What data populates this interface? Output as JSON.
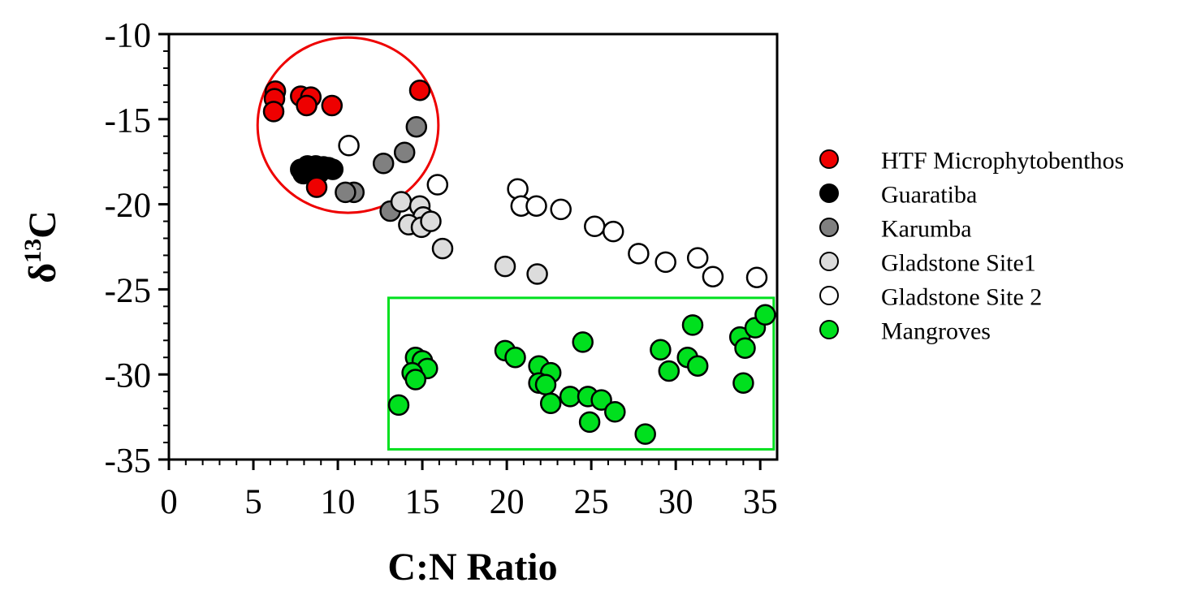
{
  "figure": {
    "background": "#ffffff",
    "frame_color": "#000000"
  },
  "chart_data": {
    "type": "scatter",
    "title": "",
    "xlabel": "C:N Ratio",
    "ylabel": {
      "symbol": "δ",
      "superscript": "13",
      "element": "C"
    },
    "xlim": [
      0,
      36
    ],
    "ylim": [
      -35,
      -10
    ],
    "grid": false,
    "x_ticks": [
      0,
      5,
      10,
      15,
      20,
      25,
      30,
      35
    ],
    "y_ticks": [
      -10,
      -15,
      -20,
      -25,
      -30,
      -35
    ],
    "minor_tick_step": 1,
    "legend_position": "right",
    "series": [
      {
        "name": "HTF Microphytobenthos",
        "color": "#ee0000",
        "z": 1,
        "points": [
          [
            6.3,
            -13.35
          ],
          [
            6.25,
            -13.8
          ],
          [
            6.2,
            -14.55
          ],
          [
            7.8,
            -13.65
          ],
          [
            8.4,
            -13.7
          ],
          [
            8.15,
            -14.2
          ],
          [
            9.65,
            -14.2
          ],
          [
            14.85,
            -13.3
          ],
          [
            8.75,
            -19.0
          ]
        ]
      },
      {
        "name": "Guaratiba",
        "color": "#000000",
        "z": 0,
        "points": [
          [
            7.8,
            -17.95
          ],
          [
            7.95,
            -18.2
          ],
          [
            8.2,
            -17.75
          ],
          [
            8.45,
            -18.05
          ],
          [
            8.7,
            -17.75
          ],
          [
            8.9,
            -18.15
          ],
          [
            9.15,
            -17.8
          ],
          [
            9.45,
            -17.85
          ],
          [
            9.7,
            -17.95
          ]
        ]
      },
      {
        "name": "Karumba",
        "color": "#808080",
        "z": 2,
        "points": [
          [
            14.65,
            -15.45
          ],
          [
            13.95,
            -16.95
          ],
          [
            12.7,
            -17.6
          ],
          [
            10.95,
            -19.3
          ],
          [
            10.45,
            -19.3
          ],
          [
            13.1,
            -20.4
          ]
        ]
      },
      {
        "name": "Gladstone Site1",
        "color": "#dcdcdc",
        "z": 3,
        "points": [
          [
            13.75,
            -19.85
          ],
          [
            14.85,
            -20.1
          ],
          [
            15.05,
            -20.75
          ],
          [
            14.2,
            -21.2
          ],
          [
            14.95,
            -21.35
          ],
          [
            15.5,
            -21.0
          ],
          [
            16.2,
            -22.6
          ],
          [
            19.9,
            -23.65
          ],
          [
            21.8,
            -24.1
          ]
        ]
      },
      {
        "name": "Gladstone Site 2",
        "color": "#ffffff",
        "z": 4,
        "points": [
          [
            10.65,
            -16.55
          ],
          [
            15.9,
            -18.85
          ],
          [
            20.65,
            -19.1
          ],
          [
            20.85,
            -20.1
          ],
          [
            21.75,
            -20.1
          ],
          [
            23.2,
            -20.3
          ],
          [
            25.2,
            -21.3
          ],
          [
            26.3,
            -21.6
          ],
          [
            27.8,
            -22.9
          ],
          [
            29.4,
            -23.4
          ],
          [
            31.3,
            -23.15
          ],
          [
            32.2,
            -24.25
          ],
          [
            34.8,
            -24.3
          ]
        ]
      },
      {
        "name": "Mangroves",
        "color": "#00e01e",
        "z": 5,
        "points": [
          [
            14.6,
            -29.0
          ],
          [
            15.0,
            -29.2
          ],
          [
            15.3,
            -29.65
          ],
          [
            14.4,
            -29.9
          ],
          [
            14.6,
            -30.3
          ],
          [
            13.6,
            -31.8
          ],
          [
            19.9,
            -28.6
          ],
          [
            20.5,
            -29.0
          ],
          [
            21.9,
            -29.5
          ],
          [
            22.6,
            -29.9
          ],
          [
            21.9,
            -30.5
          ],
          [
            22.3,
            -30.6
          ],
          [
            22.6,
            -31.7
          ],
          [
            23.75,
            -31.3
          ],
          [
            24.5,
            -28.1
          ],
          [
            24.8,
            -31.3
          ],
          [
            25.6,
            -31.5
          ],
          [
            26.4,
            -32.2
          ],
          [
            24.9,
            -32.8
          ],
          [
            28.2,
            -33.5
          ],
          [
            29.1,
            -28.55
          ],
          [
            29.6,
            -29.8
          ],
          [
            30.7,
            -29.0
          ],
          [
            31.0,
            -27.1
          ],
          [
            31.3,
            -29.5
          ],
          [
            33.8,
            -27.8
          ],
          [
            34.1,
            -28.45
          ],
          [
            34.0,
            -30.5
          ],
          [
            34.7,
            -27.25
          ],
          [
            35.3,
            -26.5
          ]
        ]
      }
    ],
    "annotations": [
      {
        "type": "ellipse",
        "label": "microphytobenthos-cluster-circle",
        "color": "#ee0000",
        "cx": 10.6,
        "cy": -15.35,
        "rx": 5.35,
        "ry": 5.15
      },
      {
        "type": "rect",
        "label": "mangroves-cluster-box",
        "color": "#00e01e",
        "x0": 13.0,
        "y0": -25.5,
        "x1": 35.8,
        "y1": -34.4
      }
    ],
    "legend": [
      {
        "label": "HTF Microphytobenthos",
        "color": "#ee0000"
      },
      {
        "label": "Guaratiba",
        "color": "#000000"
      },
      {
        "label": "Karumba",
        "color": "#808080"
      },
      {
        "label": "Gladstone Site1",
        "color": "#dcdcdc"
      },
      {
        "label": "Gladstone Site 2",
        "color": "#ffffff"
      },
      {
        "label": "Mangroves",
        "color": "#00e01e"
      }
    ]
  }
}
